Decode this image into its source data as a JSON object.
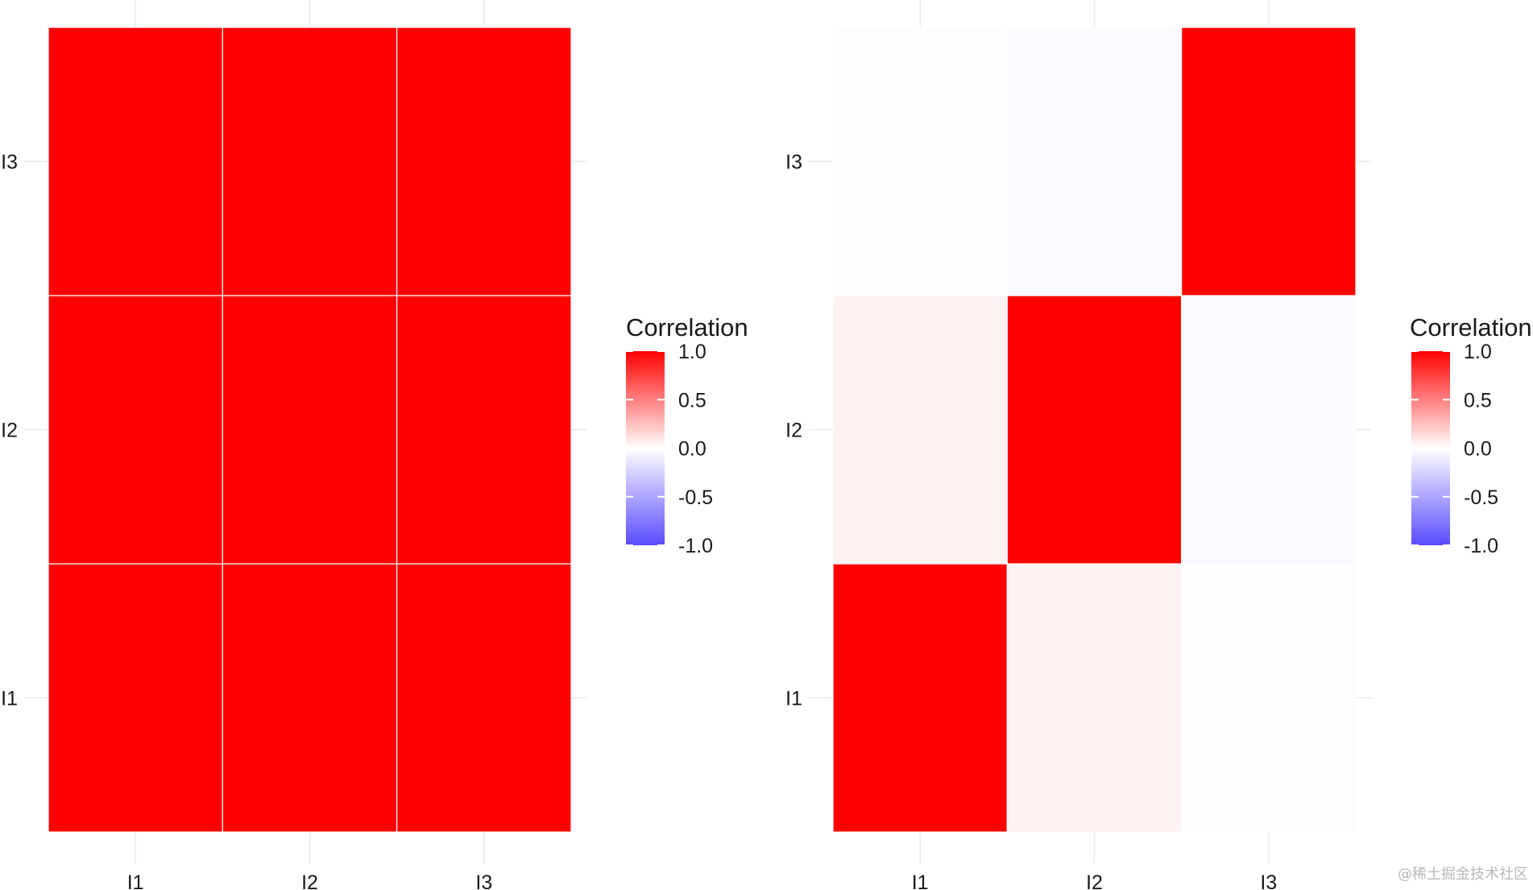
{
  "chart_data": [
    {
      "type": "heatmap",
      "title": "",
      "x_categories": [
        "I1",
        "I2",
        "I3"
      ],
      "y_categories": [
        "I1",
        "I2",
        "I3"
      ],
      "values": [
        [
          1.0,
          1.0,
          1.0
        ],
        [
          1.0,
          1.0,
          1.0
        ],
        [
          1.0,
          1.0,
          1.0
        ]
      ],
      "legend_title": "Correlation",
      "legend_ticks": [
        "1.0",
        "0.5",
        "0.0",
        "-0.5",
        "-1.0"
      ],
      "legend_tick_values": [
        1.0,
        0.5,
        0.0,
        -0.5,
        -1.0
      ],
      "color_scale": {
        "low": "#5a4bff",
        "mid": "#ffffff",
        "high": "#ff0000",
        "limits": [
          -1,
          1
        ]
      },
      "legend_position": "right"
    },
    {
      "type": "heatmap",
      "title": "",
      "x_categories": [
        "I1",
        "I2",
        "I3"
      ],
      "y_categories": [
        "I1",
        "I2",
        "I3"
      ],
      "values": [
        [
          1.0,
          0.05,
          -0.01
        ],
        [
          0.05,
          1.0,
          -0.03
        ],
        [
          -0.01,
          -0.03,
          1.0
        ]
      ],
      "legend_title": "Correlation",
      "legend_ticks": [
        "1.0",
        "0.5",
        "0.0",
        "-0.5",
        "-1.0"
      ],
      "legend_tick_values": [
        1.0,
        0.5,
        0.0,
        -0.5,
        -1.0
      ],
      "color_scale": {
        "low": "#5a4bff",
        "mid": "#ffffff",
        "high": "#ff0000",
        "limits": [
          -1,
          1
        ]
      },
      "legend_position": "right"
    }
  ],
  "watermark": "@稀土掘金技术社区"
}
